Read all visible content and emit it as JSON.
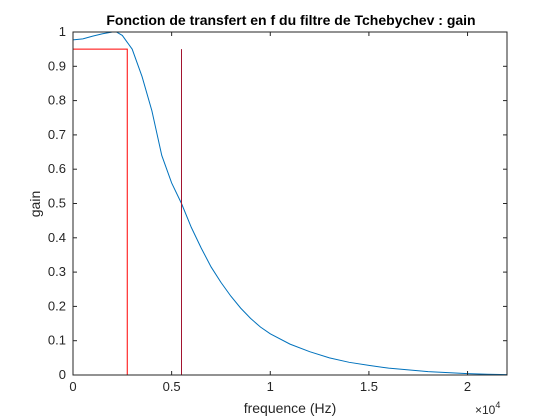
{
  "chart_data": {
    "type": "line",
    "title": "Fonction de transfert en f du filtre de Tchebychev : gain",
    "xlabel": "frequence (Hz)",
    "ylabel": "gain",
    "x_exponent_label": "×10",
    "x_exponent_power": "4",
    "xlim": [
      0,
      22000
    ],
    "ylim": [
      0,
      1
    ],
    "xticks": [
      0,
      5000,
      10000,
      15000,
      20000
    ],
    "xtick_labels": [
      "0",
      "0.5",
      "1",
      "1.5",
      "2"
    ],
    "yticks": [
      0,
      0.1,
      0.2,
      0.3,
      0.4,
      0.5,
      0.6,
      0.7,
      0.8,
      0.9,
      1
    ],
    "ytick_labels": [
      "0",
      "0.1",
      "0.2",
      "0.3",
      "0.4",
      "0.5",
      "0.6",
      "0.7",
      "0.8",
      "0.9",
      "1"
    ],
    "grid": false,
    "series": [
      {
        "color": "#0072BD",
        "x": [
          0,
          500,
          1000,
          1500,
          2000,
          2200,
          2500,
          3000,
          3500,
          4000,
          4500,
          5000,
          5500,
          6000,
          6500,
          7000,
          7500,
          8000,
          8500,
          9000,
          9500,
          10000,
          11000,
          12000,
          13000,
          14000,
          15000,
          16000,
          17000,
          18000,
          19000,
          20000,
          21000,
          22000
        ],
        "y": [
          0.977,
          0.98,
          0.988,
          0.995,
          1.0,
          1.0,
          0.99,
          0.95,
          0.87,
          0.77,
          0.64,
          0.56,
          0.5,
          0.43,
          0.37,
          0.315,
          0.27,
          0.23,
          0.195,
          0.165,
          0.14,
          0.12,
          0.09,
          0.068,
          0.05,
          0.037,
          0.028,
          0.02,
          0.015,
          0.01,
          0.007,
          0.004,
          0.002,
          0.001
        ]
      },
      {
        "color": "#FF0000",
        "x": [
          0,
          2750,
          2750,
          22000
        ],
        "y": [
          0.95,
          0.95,
          0,
          0
        ]
      },
      {
        "color": "#A2142F",
        "x": [
          5500,
          5500,
          22000
        ],
        "y": [
          0.95,
          0,
          0
        ]
      }
    ]
  }
}
